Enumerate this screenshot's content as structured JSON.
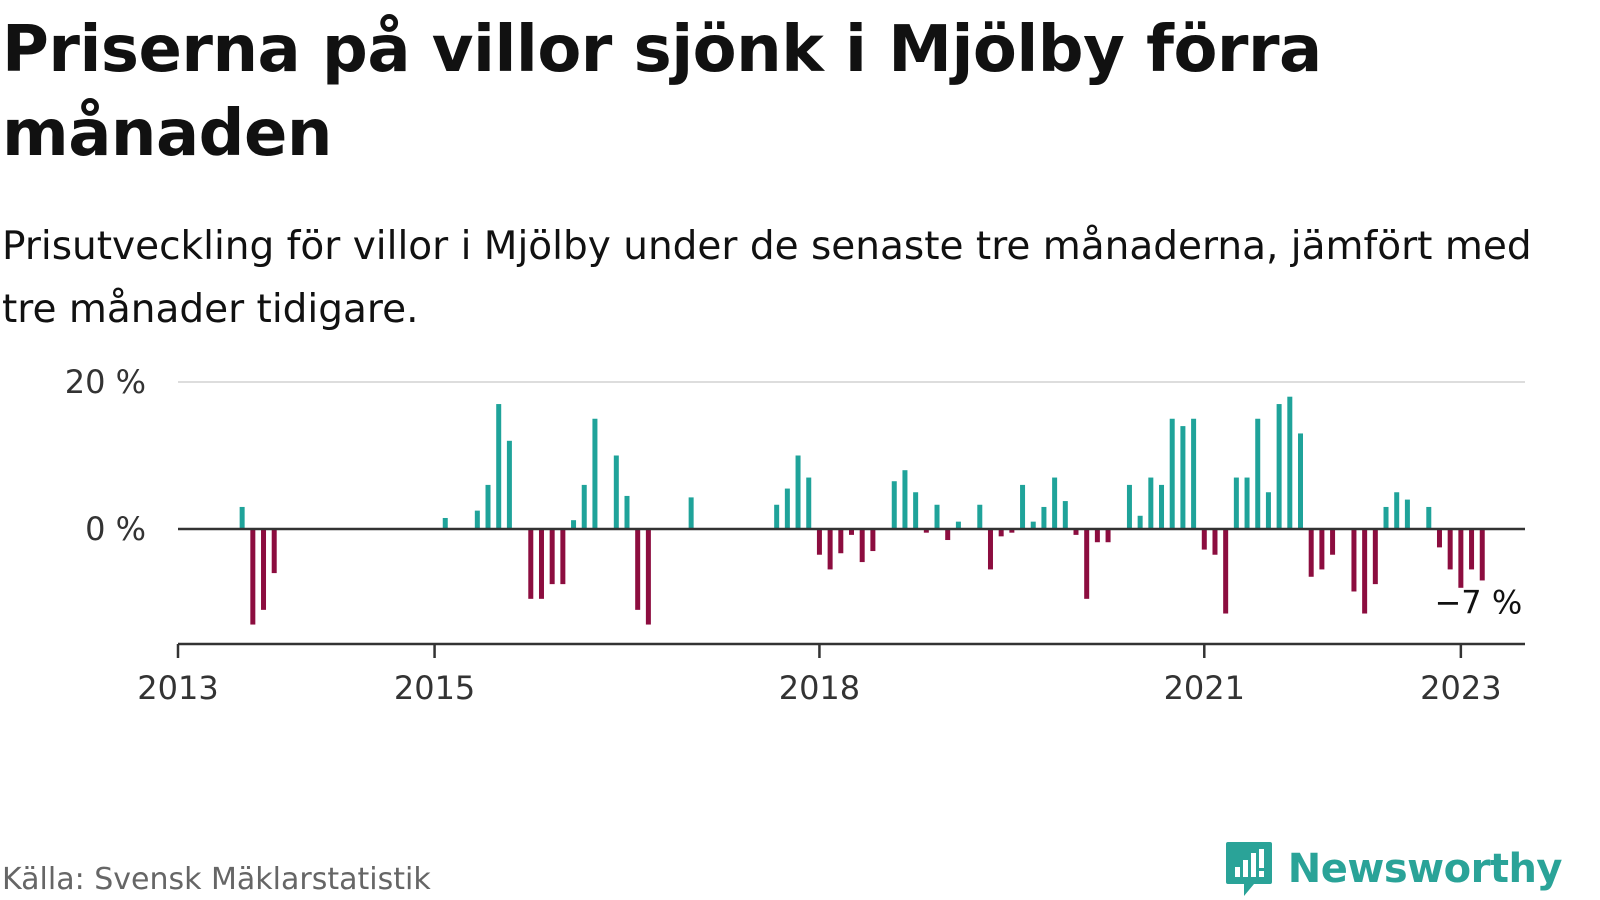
{
  "title": "Priserna på villor sjönk i Mjölby förra månaden",
  "subtitle": "Prisutveckling för villor i Mjölby under de senaste tre månaderna, jämfört med tre månader tidigare.",
  "source": "Källa: Svensk Mäklarstatistik",
  "brand": {
    "name": "Newsworthy",
    "icon": "newsworthy-logo-icon"
  },
  "colors": {
    "positive": "#1fa39a",
    "negative": "#8c0d3f",
    "axis": "#333333",
    "grid": "#dddddd",
    "brand": "#2aa398"
  },
  "chart_data": {
    "type": "bar",
    "unit": "%",
    "ylim": [
      -13,
      20
    ],
    "yticks": [
      {
        "value": 0,
        "label": "0 %"
      },
      {
        "value": 20,
        "label": "20 %"
      }
    ],
    "xlim": [
      "2013-01",
      "2023-07"
    ],
    "xticks": [
      {
        "value": "2013-01",
        "label": "2013"
      },
      {
        "value": "2015-01",
        "label": "2015"
      },
      {
        "value": "2018-01",
        "label": "2018"
      },
      {
        "value": "2021-01",
        "label": "2021"
      },
      {
        "value": "2023-01",
        "label": "2023"
      }
    ],
    "grid": true,
    "points": [
      {
        "x": "2013-07",
        "y": 3
      },
      {
        "x": "2013-08",
        "y": -13
      },
      {
        "x": "2013-09",
        "y": -11
      },
      {
        "x": "2013-10",
        "y": -6
      },
      {
        "x": "2015-02",
        "y": 1.5
      },
      {
        "x": "2015-05",
        "y": 2.5
      },
      {
        "x": "2015-06",
        "y": 6
      },
      {
        "x": "2015-07",
        "y": 17
      },
      {
        "x": "2015-08",
        "y": 12
      },
      {
        "x": "2015-10",
        "y": -9.5
      },
      {
        "x": "2015-11",
        "y": -9.5
      },
      {
        "x": "2015-12",
        "y": -7.5
      },
      {
        "x": "2016-01",
        "y": -7.5
      },
      {
        "x": "2016-02",
        "y": 1.2
      },
      {
        "x": "2016-03",
        "y": 6
      },
      {
        "x": "2016-04",
        "y": 15
      },
      {
        "x": "2016-06",
        "y": 10
      },
      {
        "x": "2016-07",
        "y": 4.5
      },
      {
        "x": "2016-08",
        "y": -11
      },
      {
        "x": "2016-09",
        "y": -13
      },
      {
        "x": "2017-01",
        "y": 4.3
      },
      {
        "x": "2017-09",
        "y": 3.3
      },
      {
        "x": "2017-10",
        "y": 5.5
      },
      {
        "x": "2017-11",
        "y": 10
      },
      {
        "x": "2017-12",
        "y": 7
      },
      {
        "x": "2018-01",
        "y": -3.5
      },
      {
        "x": "2018-02",
        "y": -5.5
      },
      {
        "x": "2018-03",
        "y": -3.3
      },
      {
        "x": "2018-04",
        "y": -0.8
      },
      {
        "x": "2018-05",
        "y": -4.5
      },
      {
        "x": "2018-06",
        "y": -3
      },
      {
        "x": "2018-08",
        "y": 6.5
      },
      {
        "x": "2018-09",
        "y": 8
      },
      {
        "x": "2018-10",
        "y": 5
      },
      {
        "x": "2018-11",
        "y": -0.5
      },
      {
        "x": "2018-12",
        "y": 3.3
      },
      {
        "x": "2019-01",
        "y": -1.5
      },
      {
        "x": "2019-02",
        "y": 1
      },
      {
        "x": "2019-04",
        "y": 3.3
      },
      {
        "x": "2019-05",
        "y": -5.5
      },
      {
        "x": "2019-06",
        "y": -1
      },
      {
        "x": "2019-07",
        "y": -0.5
      },
      {
        "x": "2019-08",
        "y": 6
      },
      {
        "x": "2019-09",
        "y": 1
      },
      {
        "x": "2019-10",
        "y": 3
      },
      {
        "x": "2019-11",
        "y": 7
      },
      {
        "x": "2019-12",
        "y": 3.8
      },
      {
        "x": "2020-01",
        "y": -0.8
      },
      {
        "x": "2020-02",
        "y": -9.5
      },
      {
        "x": "2020-03",
        "y": -1.8
      },
      {
        "x": "2020-04",
        "y": -1.8
      },
      {
        "x": "2020-06",
        "y": 6
      },
      {
        "x": "2020-07",
        "y": 1.8
      },
      {
        "x": "2020-08",
        "y": 7
      },
      {
        "x": "2020-09",
        "y": 6
      },
      {
        "x": "2020-10",
        "y": 15
      },
      {
        "x": "2020-11",
        "y": 14
      },
      {
        "x": "2020-12",
        "y": 15
      },
      {
        "x": "2021-01",
        "y": -2.8
      },
      {
        "x": "2021-02",
        "y": -3.5
      },
      {
        "x": "2021-03",
        "y": -11.5
      },
      {
        "x": "2021-04",
        "y": 7
      },
      {
        "x": "2021-05",
        "y": 7
      },
      {
        "x": "2021-06",
        "y": 15
      },
      {
        "x": "2021-07",
        "y": 5
      },
      {
        "x": "2021-08",
        "y": 17
      },
      {
        "x": "2021-09",
        "y": 18
      },
      {
        "x": "2021-10",
        "y": 13
      },
      {
        "x": "2021-11",
        "y": -6.5
      },
      {
        "x": "2021-12",
        "y": -5.5
      },
      {
        "x": "2022-01",
        "y": -3.5
      },
      {
        "x": "2022-03",
        "y": -8.5
      },
      {
        "x": "2022-04",
        "y": -11.5
      },
      {
        "x": "2022-05",
        "y": -7.5
      },
      {
        "x": "2022-06",
        "y": 3
      },
      {
        "x": "2022-07",
        "y": 5
      },
      {
        "x": "2022-08",
        "y": 4
      },
      {
        "x": "2022-10",
        "y": 3
      },
      {
        "x": "2022-11",
        "y": -2.5
      },
      {
        "x": "2022-12",
        "y": -5.5
      },
      {
        "x": "2023-01",
        "y": -8
      },
      {
        "x": "2023-02",
        "y": -5.5
      },
      {
        "x": "2023-03",
        "y": -7
      }
    ],
    "annotations": [
      {
        "x": "2023-03",
        "y": -7,
        "label": "−7 %"
      }
    ]
  }
}
